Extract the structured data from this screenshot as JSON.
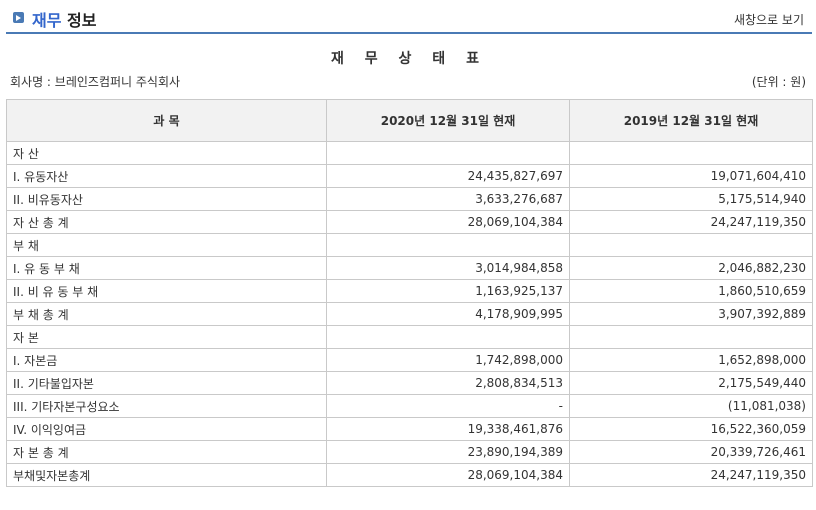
{
  "header": {
    "title_accent": "재무",
    "title_rest": "정보",
    "new_window_link": "새창으로 보기"
  },
  "document": {
    "title": "재 무 상 태 표",
    "company": "회사명 : 브레인즈컴퍼니 주식회사",
    "unit": "(단위 : 원)"
  },
  "table": {
    "headers": [
      "과 목",
      "2020년 12월 31일 현재",
      "2019년 12월 31일 현재"
    ],
    "rows": [
      {
        "label": "자 산",
        "current": "",
        "prior": ""
      },
      {
        "label": "I. 유동자산",
        "current": "24,435,827,697",
        "prior": "19,071,604,410"
      },
      {
        "label": "II. 비유동자산",
        "current": "3,633,276,687",
        "prior": "5,175,514,940"
      },
      {
        "label": "자 산 총 계",
        "current": "28,069,104,384",
        "prior": "24,247,119,350"
      },
      {
        "label": "부 채",
        "current": "",
        "prior": ""
      },
      {
        "label": "I. 유 동 부 채",
        "current": "3,014,984,858",
        "prior": "2,046,882,230"
      },
      {
        "label": "II. 비 유 동 부 채",
        "current": "1,163,925,137",
        "prior": "1,860,510,659"
      },
      {
        "label": "부 채 총 계",
        "current": "4,178,909,995",
        "prior": "3,907,392,889"
      },
      {
        "label": "자 본",
        "current": "",
        "prior": ""
      },
      {
        "label": "I. 자본금",
        "current": "1,742,898,000",
        "prior": "1,652,898,000"
      },
      {
        "label": "II. 기타불입자본",
        "current": "2,808,834,513",
        "prior": "2,175,549,440"
      },
      {
        "label": "III. 기타자본구성요소",
        "current": "-",
        "prior": "(11,081,038)"
      },
      {
        "label": "IV. 이익잉여금",
        "current": "19,338,461,876",
        "prior": "16,522,360,059"
      },
      {
        "label": "자 본 총 계",
        "current": "23,890,194,389",
        "prior": "20,339,726,461"
      },
      {
        "label": "부채및자본총계",
        "current": "28,069,104,384",
        "prior": "24,247,119,350"
      }
    ]
  }
}
